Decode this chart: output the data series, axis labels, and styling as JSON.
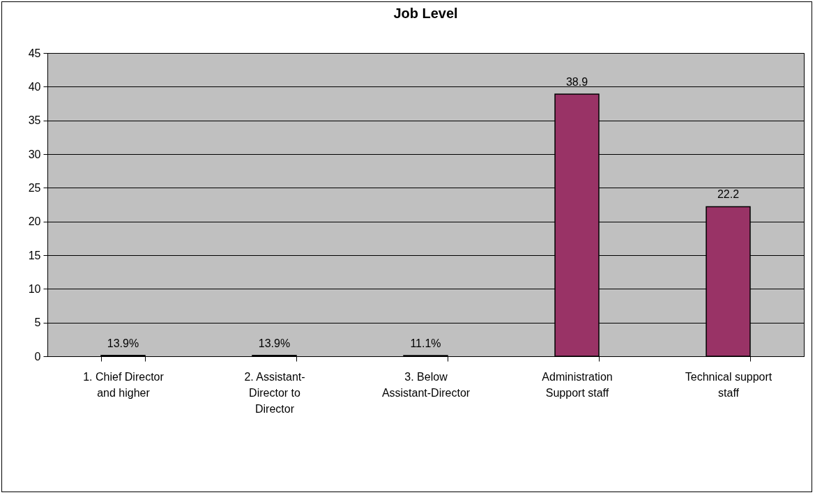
{
  "chart_data": {
    "type": "bar",
    "title": "Job Level",
    "categories": [
      "1. Chief Director and higher",
      "2. Assistant-Director to Director",
      "3. Below Assistant-Director",
      "Administration Support staff",
      "Technical support staff"
    ],
    "values": [
      0.139,
      0.139,
      0.111,
      38.9,
      22.2
    ],
    "value_labels": [
      "13.9%",
      "13.9%",
      "11.1%",
      "38.9",
      "22.2"
    ],
    "colors": [
      "#000000",
      "#000000",
      "#000000",
      "#993366",
      "#993366"
    ],
    "ylim": [
      0,
      45
    ],
    "yticks": [
      0,
      5,
      10,
      15,
      20,
      25,
      30,
      35,
      40,
      45
    ],
    "grid": "y",
    "legend": false
  }
}
